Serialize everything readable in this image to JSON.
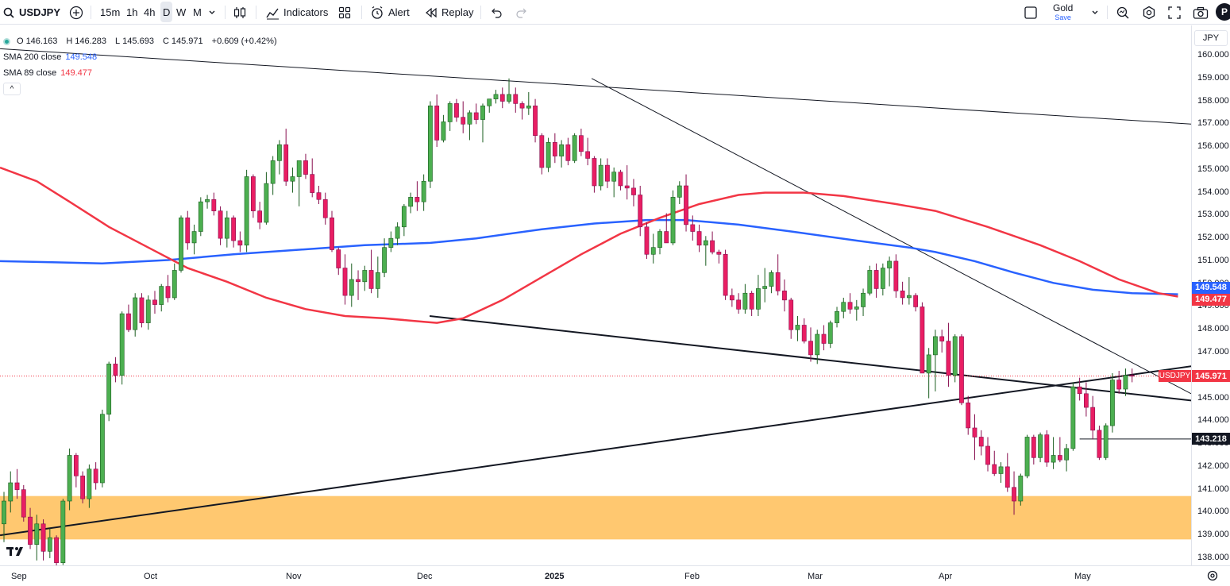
{
  "toolbar": {
    "symbol": "USDJPY",
    "timeframes": [
      "15m",
      "1h",
      "4h",
      "D",
      "W",
      "M"
    ],
    "active_timeframe": "D",
    "indicators_label": "Indicators",
    "alert_label": "Alert",
    "replay_label": "Replay",
    "layout_name": "Gold",
    "layout_save": "Save",
    "profile_initial": "P"
  },
  "legend": {
    "open_label": "O",
    "open": "146.163",
    "high_label": "H",
    "high": "146.283",
    "low_label": "L",
    "low": "145.693",
    "close_label": "C",
    "close": "145.971",
    "change": "+0.609 (+0.42%)",
    "sma200_label": "SMA 200 close",
    "sma200_value": "149.548",
    "sma89_label": "SMA 89 close",
    "sma89_value": "149.477",
    "toggle": "^"
  },
  "price_axis": {
    "currency": "JPY",
    "ticks": [
      "160.000",
      "159.000",
      "158.000",
      "157.000",
      "156.000",
      "155.000",
      "154.000",
      "153.000",
      "152.000",
      "151.000",
      "150.000",
      "149.000",
      "148.000",
      "147.000",
      "146.000",
      "145.000",
      "144.000",
      "143.000",
      "142.000",
      "141.000",
      "140.000",
      "139.000",
      "138.000"
    ],
    "tag_sma200": "149.548",
    "tag_sma89": "149.477",
    "tag_symbol": "USDJPY",
    "tag_last": "145.971",
    "tag_line": "143.218"
  },
  "time_axis": {
    "labels": [
      "Sep",
      "Oct",
      "Nov",
      "Dec",
      "2025",
      "Feb",
      "Mar",
      "Apr",
      "May"
    ]
  },
  "colors": {
    "up": "#26a69a",
    "up_fill": "#4caf50",
    "down": "#e91e63",
    "sma200": "#2962ff",
    "sma89": "#f23645",
    "zone": "#ffc870",
    "last_price": "#f23645",
    "line_tag": "#131722"
  },
  "chart_data": {
    "type": "candlestick",
    "y_range": [
      137.9,
      160.4
    ],
    "candles": [
      [
        139.5,
        140.9,
        138.7,
        140.5
      ],
      [
        140.5,
        141.8,
        140.0,
        141.3
      ],
      [
        141.3,
        141.9,
        140.6,
        141.0
      ],
      [
        141.0,
        141.2,
        139.6,
        139.8
      ],
      [
        139.8,
        140.2,
        138.4,
        138.6
      ],
      [
        138.6,
        139.9,
        137.9,
        139.5
      ],
      [
        139.5,
        139.7,
        137.9,
        138.3
      ],
      [
        138.3,
        139.3,
        138.0,
        138.9
      ],
      [
        138.9,
        139.0,
        137.6,
        137.8
      ],
      [
        137.8,
        140.6,
        137.7,
        140.5
      ],
      [
        140.5,
        142.8,
        140.1,
        142.5
      ],
      [
        142.5,
        142.6,
        141.1,
        141.6
      ],
      [
        141.6,
        141.8,
        140.4,
        140.6
      ],
      [
        140.6,
        142.1,
        140.2,
        141.9
      ],
      [
        141.9,
        142.2,
        141.0,
        141.3
      ],
      [
        141.3,
        144.5,
        141.1,
        144.3
      ],
      [
        144.3,
        146.6,
        144.0,
        146.5
      ],
      [
        146.5,
        146.8,
        145.7,
        146.0
      ],
      [
        146.0,
        148.8,
        145.6,
        148.7
      ],
      [
        148.7,
        149.1,
        147.9,
        148.0
      ],
      [
        148.0,
        149.6,
        147.7,
        149.4
      ],
      [
        149.4,
        149.6,
        148.1,
        148.3
      ],
      [
        148.3,
        149.5,
        148.0,
        149.3
      ],
      [
        149.3,
        149.7,
        148.7,
        149.1
      ],
      [
        149.1,
        150.0,
        148.8,
        149.9
      ],
      [
        149.9,
        150.4,
        149.2,
        149.4
      ],
      [
        149.4,
        150.9,
        149.3,
        150.6
      ],
      [
        150.6,
        153.0,
        150.5,
        152.9
      ],
      [
        152.9,
        153.2,
        151.5,
        151.8
      ],
      [
        151.8,
        152.6,
        151.3,
        152.3
      ],
      [
        152.3,
        153.8,
        152.1,
        153.6
      ],
      [
        153.6,
        153.9,
        153.3,
        153.7
      ],
      [
        153.7,
        154.0,
        153.0,
        153.2
      ],
      [
        153.2,
        153.4,
        151.7,
        152.0
      ],
      [
        152.0,
        153.2,
        151.6,
        152.9
      ],
      [
        152.9,
        153.0,
        151.6,
        151.9
      ],
      [
        151.9,
        152.3,
        151.4,
        151.7
      ],
      [
        151.7,
        155.0,
        151.4,
        154.7
      ],
      [
        154.7,
        154.8,
        152.9,
        153.2
      ],
      [
        153.2,
        153.6,
        152.4,
        152.7
      ],
      [
        152.7,
        154.9,
        152.6,
        154.4
      ],
      [
        154.4,
        155.6,
        153.9,
        155.4
      ],
      [
        155.4,
        156.3,
        154.8,
        156.1
      ],
      [
        156.1,
        156.8,
        154.3,
        154.5
      ],
      [
        154.5,
        155.1,
        154.0,
        154.7
      ],
      [
        154.7,
        155.3,
        153.4,
        155.4
      ],
      [
        155.4,
        155.7,
        154.6,
        154.8
      ],
      [
        154.8,
        155.5,
        153.8,
        154.0
      ],
      [
        154.0,
        154.3,
        153.5,
        153.7
      ],
      [
        153.7,
        154.0,
        152.6,
        152.9
      ],
      [
        152.9,
        153.2,
        151.4,
        151.5
      ],
      [
        151.5,
        151.6,
        150.4,
        150.7
      ],
      [
        150.7,
        151.3,
        149.1,
        149.5
      ],
      [
        149.5,
        150.9,
        149.0,
        150.2
      ],
      [
        150.2,
        150.6,
        149.3,
        150.1
      ],
      [
        150.1,
        150.8,
        149.7,
        150.6
      ],
      [
        150.6,
        151.5,
        149.6,
        149.8
      ],
      [
        149.8,
        151.2,
        149.4,
        150.5
      ],
      [
        150.5,
        152.0,
        150.3,
        151.6
      ],
      [
        151.6,
        152.3,
        151.4,
        152.0
      ],
      [
        152.0,
        152.7,
        151.7,
        152.5
      ],
      [
        152.5,
        153.5,
        152.1,
        153.4
      ],
      [
        153.4,
        154.0,
        153.1,
        153.8
      ],
      [
        153.8,
        154.5,
        153.2,
        153.6
      ],
      [
        153.6,
        154.8,
        153.2,
        154.5
      ],
      [
        154.5,
        158.0,
        154.2,
        157.8
      ],
      [
        157.8,
        158.3,
        156.0,
        156.3
      ],
      [
        156.3,
        157.4,
        156.2,
        157.1
      ],
      [
        157.1,
        158.0,
        156.7,
        157.9
      ],
      [
        157.9,
        158.1,
        157.1,
        157.3
      ],
      [
        157.3,
        158.0,
        156.6,
        157.0
      ],
      [
        157.0,
        157.6,
        156.3,
        157.5
      ],
      [
        157.5,
        157.9,
        157.0,
        157.2
      ],
      [
        157.2,
        157.9,
        156.2,
        157.8
      ],
      [
        157.8,
        158.1,
        157.5,
        158.1
      ],
      [
        158.1,
        158.5,
        157.9,
        158.3
      ],
      [
        158.3,
        158.6,
        157.7,
        158.0
      ],
      [
        158.0,
        159.0,
        157.9,
        158.3
      ],
      [
        158.3,
        158.6,
        157.5,
        157.9
      ],
      [
        157.9,
        158.0,
        157.2,
        157.7
      ],
      [
        157.7,
        158.4,
        157.4,
        157.8
      ],
      [
        157.8,
        158.1,
        156.2,
        156.5
      ],
      [
        156.5,
        156.6,
        154.8,
        155.1
      ],
      [
        155.1,
        156.4,
        154.9,
        156.2
      ],
      [
        156.2,
        156.6,
        155.3,
        155.6
      ],
      [
        155.6,
        156.3,
        155.1,
        156.1
      ],
      [
        156.1,
        156.4,
        155.2,
        155.4
      ],
      [
        155.4,
        156.6,
        155.3,
        156.5
      ],
      [
        156.5,
        156.8,
        155.6,
        155.8
      ],
      [
        155.8,
        156.4,
        155.2,
        155.5
      ],
      [
        155.5,
        155.6,
        154.0,
        154.3
      ],
      [
        154.3,
        155.5,
        154.1,
        155.2
      ],
      [
        155.2,
        155.5,
        154.2,
        154.5
      ],
      [
        154.5,
        155.1,
        153.8,
        154.9
      ],
      [
        154.9,
        155.0,
        154.1,
        154.3
      ],
      [
        154.3,
        155.2,
        153.7,
        154.2
      ],
      [
        154.2,
        154.6,
        153.4,
        153.9
      ],
      [
        153.9,
        154.3,
        152.1,
        152.5
      ],
      [
        152.5,
        152.7,
        151.1,
        151.3
      ],
      [
        151.3,
        152.2,
        150.9,
        151.6
      ],
      [
        151.6,
        152.4,
        151.3,
        152.3
      ],
      [
        152.3,
        153.1,
        151.8,
        151.8
      ],
      [
        151.8,
        154.1,
        151.7,
        153.8
      ],
      [
        153.8,
        154.5,
        153.5,
        154.3
      ],
      [
        154.3,
        154.8,
        152.3,
        152.6
      ],
      [
        152.6,
        153.0,
        151.9,
        152.3
      ],
      [
        152.3,
        152.6,
        151.4,
        151.7
      ],
      [
        151.7,
        152.1,
        150.8,
        151.9
      ],
      [
        151.9,
        152.3,
        151.3,
        151.4
      ],
      [
        151.4,
        151.5,
        150.9,
        151.3
      ],
      [
        151.3,
        151.5,
        149.3,
        149.5
      ],
      [
        149.5,
        149.8,
        149.0,
        149.3
      ],
      [
        149.3,
        149.6,
        148.7,
        148.9
      ],
      [
        148.9,
        150.0,
        148.7,
        149.6
      ],
      [
        149.6,
        149.7,
        148.6,
        148.9
      ],
      [
        148.9,
        150.4,
        148.6,
        149.8
      ],
      [
        149.8,
        150.7,
        149.2,
        149.9
      ],
      [
        149.9,
        150.6,
        149.6,
        150.5
      ],
      [
        150.5,
        151.3,
        149.5,
        149.7
      ],
      [
        149.7,
        150.2,
        148.8,
        149.3
      ],
      [
        149.3,
        149.4,
        147.6,
        148.0
      ],
      [
        148.0,
        148.6,
        147.5,
        148.2
      ],
      [
        148.2,
        148.5,
        147.4,
        147.5
      ],
      [
        147.5,
        148.1,
        146.6,
        146.9
      ],
      [
        146.9,
        148.0,
        146.5,
        147.8
      ],
      [
        147.8,
        148.2,
        147.1,
        147.4
      ],
      [
        147.4,
        148.4,
        147.2,
        148.3
      ],
      [
        148.3,
        149.0,
        148.1,
        148.8
      ],
      [
        148.8,
        149.4,
        148.5,
        149.2
      ],
      [
        149.2,
        149.6,
        148.7,
        148.9
      ],
      [
        148.9,
        149.3,
        148.4,
        149.0
      ],
      [
        149.0,
        149.8,
        148.6,
        149.6
      ],
      [
        149.6,
        150.8,
        149.5,
        150.6
      ],
      [
        150.6,
        150.9,
        149.4,
        149.8
      ],
      [
        149.8,
        150.9,
        149.5,
        150.7
      ],
      [
        150.7,
        151.2,
        149.9,
        151.0
      ],
      [
        151.0,
        151.3,
        149.4,
        149.7
      ],
      [
        149.7,
        150.1,
        149.1,
        149.4
      ],
      [
        149.4,
        150.3,
        149.1,
        149.5
      ],
      [
        149.5,
        149.6,
        148.8,
        149.0
      ],
      [
        149.0,
        149.2,
        146.1,
        146.1
      ],
      [
        146.1,
        147.2,
        145.0,
        146.9
      ],
      [
        146.9,
        148.0,
        145.3,
        147.7
      ],
      [
        147.7,
        148.0,
        147.0,
        147.5
      ],
      [
        147.5,
        148.3,
        145.5,
        146.0
      ],
      [
        146.0,
        147.8,
        145.7,
        147.7
      ],
      [
        147.7,
        147.8,
        144.7,
        144.8
      ],
      [
        144.8,
        145.1,
        143.4,
        143.7
      ],
      [
        143.7,
        144.3,
        142.3,
        143.3
      ],
      [
        143.3,
        143.6,
        142.5,
        142.9
      ],
      [
        142.9,
        143.3,
        141.8,
        142.1
      ],
      [
        142.1,
        142.7,
        141.6,
        141.7
      ],
      [
        141.7,
        142.2,
        141.3,
        142.0
      ],
      [
        142.0,
        142.6,
        140.9,
        141.1
      ],
      [
        141.1,
        141.8,
        139.9,
        140.5
      ],
      [
        140.5,
        141.7,
        140.3,
        141.6
      ],
      [
        141.6,
        143.4,
        141.5,
        143.3
      ],
      [
        143.3,
        143.4,
        142.1,
        142.4
      ],
      [
        142.4,
        143.5,
        142.2,
        143.4
      ],
      [
        143.4,
        143.6,
        142.0,
        142.2
      ],
      [
        142.2,
        143.3,
        141.9,
        142.5
      ],
      [
        142.5,
        143.3,
        142.2,
        142.3
      ],
      [
        142.3,
        143.0,
        141.8,
        142.8
      ],
      [
        142.8,
        145.7,
        142.7,
        145.5
      ],
      [
        145.5,
        145.9,
        144.9,
        145.2
      ],
      [
        145.2,
        145.7,
        144.2,
        144.6
      ],
      [
        144.6,
        145.1,
        143.2,
        143.6
      ],
      [
        143.6,
        143.8,
        142.3,
        142.4
      ],
      [
        142.4,
        143.9,
        142.3,
        143.8
      ],
      [
        143.8,
        146.1,
        143.5,
        145.8
      ],
      [
        145.8,
        146.2,
        145.2,
        145.4
      ],
      [
        145.4,
        146.3,
        145.1,
        146.0
      ],
      [
        146.0,
        146.3,
        145.7,
        145.97
      ]
    ],
    "series": [
      {
        "name": "SMA 200 close",
        "last": 149.548
      },
      {
        "name": "SMA 89 close",
        "last": 149.477
      }
    ],
    "horizontal_line": 143.218
  }
}
